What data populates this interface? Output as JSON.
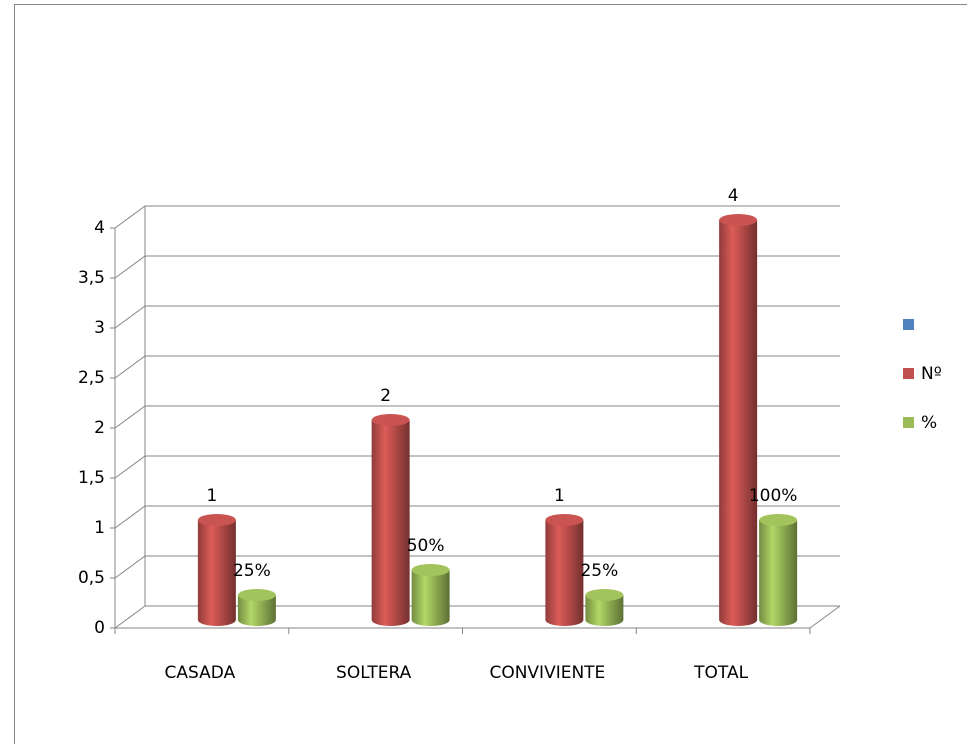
{
  "chart_data": {
    "type": "bar3d",
    "categories": [
      "CASADA",
      "SOLTERA",
      "CONVIVIENTE",
      "TOTAL"
    ],
    "series": [
      {
        "color": "#4f81bd",
        "values": [
          null,
          null,
          null,
          null
        ]
      },
      {
        "name": "Nº",
        "color": "#c0504d",
        "values": [
          1,
          2,
          1,
          4
        ]
      },
      {
        "name": "%",
        "color": "#9bbb59",
        "values": [
          0.25,
          0.5,
          0.25,
          1
        ],
        "value_labels": [
          "25%",
          "50%",
          "25%",
          "100%"
        ]
      }
    ],
    "ylim": [
      0,
      4
    ],
    "yticks": [
      0,
      {
        "value": 0.5,
        "label": "0,5"
      },
      1,
      {
        "value": 1.5,
        "label": "1,5"
      },
      2,
      {
        "value": 2.5,
        "label": "2,5"
      },
      3,
      {
        "value": 3.5,
        "label": "3,5"
      },
      4
    ],
    "grid": true,
    "legend": "right"
  }
}
